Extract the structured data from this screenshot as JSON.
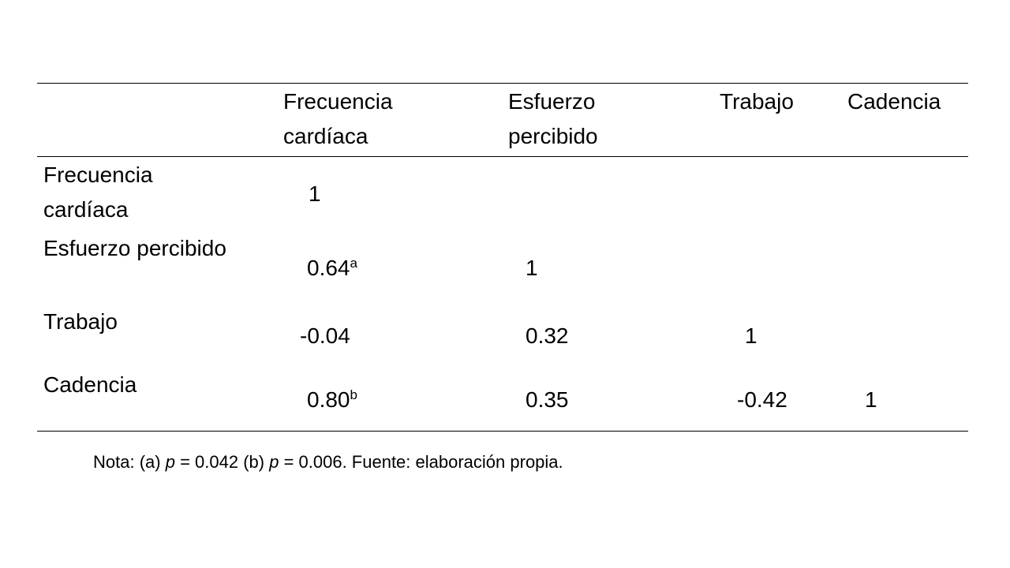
{
  "table": {
    "header": [
      null,
      "Frecuencia cardíaca",
      "Esfuerzo percibido",
      "Trabajo",
      "Cadencia"
    ],
    "rows": [
      {
        "label": "Frecuencia cardíaca",
        "cells": [
          {
            "text": "1"
          },
          null,
          null,
          null
        ]
      },
      {
        "label": "Esfuerzo percibido",
        "cells": [
          {
            "text": "0.64",
            "sup": "a"
          },
          {
            "text": "1"
          },
          null,
          null
        ]
      },
      {
        "label": "Trabajo",
        "cells": [
          {
            "text": "-0.04"
          },
          {
            "text": "0.32"
          },
          {
            "text": "1"
          },
          null
        ]
      },
      {
        "label": "Cadencia",
        "cells": [
          {
            "text": "0.80",
            "sup": "b"
          },
          {
            "text": "0.35"
          },
          {
            "text": "-0.42"
          },
          {
            "text": "1"
          }
        ]
      }
    ]
  },
  "note": [
    "Nota: (a) ",
    "p",
    " = 0.042 (b) ",
    "p",
    " = 0.006. Fuente: elaboración propia."
  ]
}
